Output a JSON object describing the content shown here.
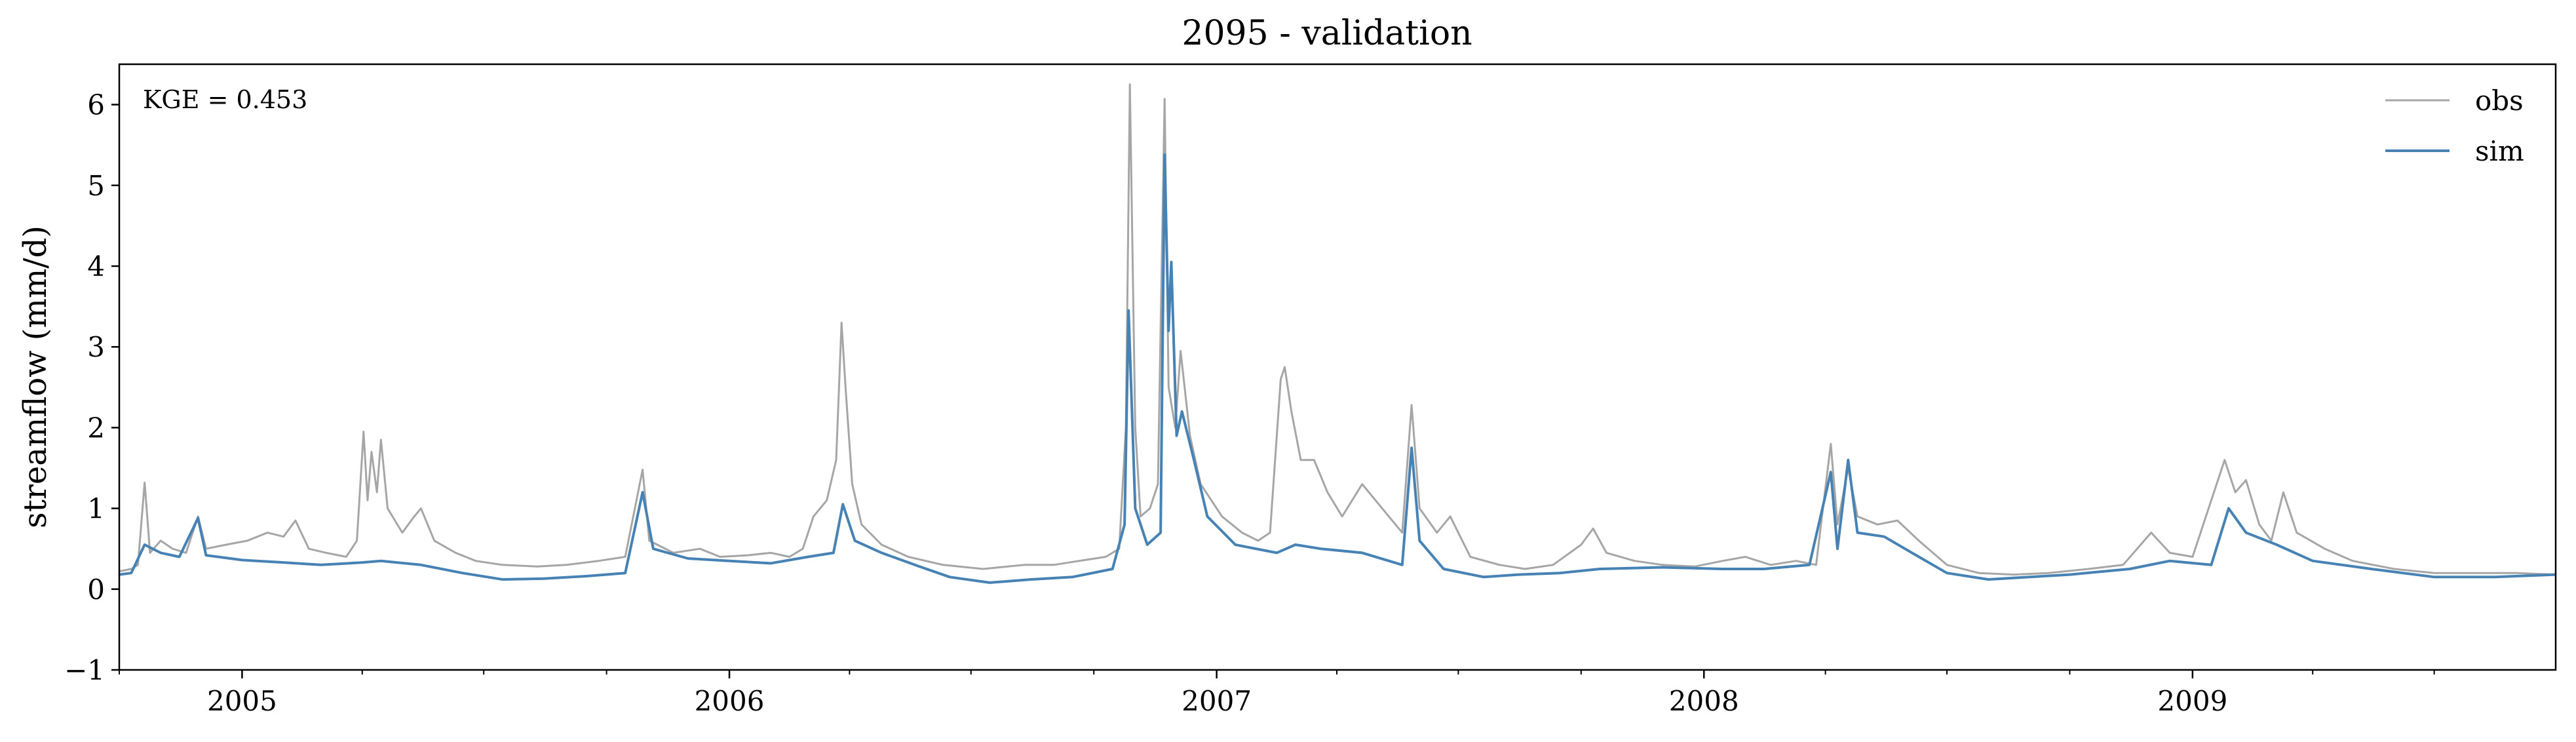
{
  "chart_data": {
    "type": "line",
    "title": "2095 - validation",
    "xlabel": "",
    "ylabel": "streamflow (mm/d)",
    "annotation": "KGE = 0.453",
    "x_range": [
      "2004-10-01",
      "2009-09-30"
    ],
    "ylim": [
      -1,
      6.5
    ],
    "y_ticks": [
      -1,
      0,
      1,
      2,
      3,
      4,
      5,
      6
    ],
    "y_tick_labels": [
      "−1",
      "0",
      "1",
      "2",
      "3",
      "4",
      "5",
      "6"
    ],
    "x_tick_labels": [
      "2005",
      "2006",
      "2007",
      "2008",
      "2009"
    ],
    "x_ticks": [
      "2005-01-01",
      "2006-01-01",
      "2007-01-01",
      "2008-01-01",
      "2009-01-01"
    ],
    "legend_position": "top-right",
    "grid": false,
    "series": [
      {
        "name": "obs",
        "color": "#a6a6a6",
        "points": [
          [
            "2004-10-01",
            0.22
          ],
          [
            "2004-10-10",
            0.25
          ],
          [
            "2004-10-15",
            0.3
          ],
          [
            "2004-10-20",
            1.32
          ],
          [
            "2004-10-24",
            0.45
          ],
          [
            "2004-11-01",
            0.6
          ],
          [
            "2004-11-10",
            0.5
          ],
          [
            "2004-11-20",
            0.45
          ],
          [
            "2004-11-29",
            0.9
          ],
          [
            "2004-12-05",
            0.5
          ],
          [
            "2004-12-20",
            0.55
          ],
          [
            "2005-01-05",
            0.6
          ],
          [
            "2005-01-20",
            0.7
          ],
          [
            "2005-02-01",
            0.65
          ],
          [
            "2005-02-10",
            0.85
          ],
          [
            "2005-02-20",
            0.5
          ],
          [
            "2005-03-05",
            0.45
          ],
          [
            "2005-03-20",
            0.4
          ],
          [
            "2005-03-28",
            0.6
          ],
          [
            "2005-04-02",
            1.95
          ],
          [
            "2005-04-05",
            1.1
          ],
          [
            "2005-04-08",
            1.7
          ],
          [
            "2005-04-12",
            1.2
          ],
          [
            "2005-04-15",
            1.85
          ],
          [
            "2005-04-20",
            1.0
          ],
          [
            "2005-05-01",
            0.7
          ],
          [
            "2005-05-10",
            0.9
          ],
          [
            "2005-05-15",
            1.0
          ],
          [
            "2005-05-25",
            0.6
          ],
          [
            "2005-06-10",
            0.45
          ],
          [
            "2005-06-25",
            0.35
          ],
          [
            "2005-07-15",
            0.3
          ],
          [
            "2005-08-10",
            0.28
          ],
          [
            "2005-09-01",
            0.3
          ],
          [
            "2005-09-25",
            0.35
          ],
          [
            "2005-10-15",
            0.4
          ],
          [
            "2005-10-28",
            1.48
          ],
          [
            "2005-11-02",
            0.6
          ],
          [
            "2005-11-20",
            0.45
          ],
          [
            "2005-12-10",
            0.5
          ],
          [
            "2005-12-25",
            0.4
          ],
          [
            "2006-01-15",
            0.42
          ],
          [
            "2006-02-01",
            0.45
          ],
          [
            "2006-02-15",
            0.4
          ],
          [
            "2006-02-25",
            0.5
          ],
          [
            "2006-03-05",
            0.9
          ],
          [
            "2006-03-15",
            1.1
          ],
          [
            "2006-03-22",
            1.6
          ],
          [
            "2006-03-26",
            3.3
          ],
          [
            "2006-03-29",
            2.5
          ],
          [
            "2006-04-03",
            1.3
          ],
          [
            "2006-04-10",
            0.8
          ],
          [
            "2006-04-25",
            0.55
          ],
          [
            "2006-05-15",
            0.4
          ],
          [
            "2006-06-10",
            0.3
          ],
          [
            "2006-07-10",
            0.25
          ],
          [
            "2006-08-10",
            0.3
          ],
          [
            "2006-09-01",
            0.3
          ],
          [
            "2006-09-20",
            0.35
          ],
          [
            "2006-10-10",
            0.4
          ],
          [
            "2006-10-20",
            0.5
          ],
          [
            "2006-10-25",
            2.0
          ],
          [
            "2006-10-28",
            6.25
          ],
          [
            "2006-11-01",
            2.0
          ],
          [
            "2006-11-05",
            0.9
          ],
          [
            "2006-11-12",
            1.0
          ],
          [
            "2006-11-18",
            1.3
          ],
          [
            "2006-11-23",
            6.07
          ],
          [
            "2006-11-26",
            2.5
          ],
          [
            "2006-12-01",
            2.0
          ],
          [
            "2006-12-05",
            2.95
          ],
          [
            "2006-12-12",
            1.9
          ],
          [
            "2006-12-20",
            1.3
          ],
          [
            "2007-01-05",
            0.9
          ],
          [
            "2007-01-20",
            0.7
          ],
          [
            "2007-02-01",
            0.6
          ],
          [
            "2007-02-10",
            0.7
          ],
          [
            "2007-02-18",
            2.6
          ],
          [
            "2007-02-21",
            2.75
          ],
          [
            "2007-02-26",
            2.2
          ],
          [
            "2007-03-05",
            1.6
          ],
          [
            "2007-03-15",
            1.6
          ],
          [
            "2007-03-25",
            1.2
          ],
          [
            "2007-04-05",
            0.9
          ],
          [
            "2007-04-20",
            1.3
          ],
          [
            "2007-05-05",
            1.0
          ],
          [
            "2007-05-20",
            0.7
          ],
          [
            "2007-05-27",
            2.28
          ],
          [
            "2007-06-02",
            1.0
          ],
          [
            "2007-06-15",
            0.7
          ],
          [
            "2007-06-25",
            0.9
          ],
          [
            "2007-07-10",
            0.4
          ],
          [
            "2007-08-01",
            0.3
          ],
          [
            "2007-08-20",
            0.25
          ],
          [
            "2007-09-10",
            0.3
          ],
          [
            "2007-10-01",
            0.55
          ],
          [
            "2007-10-10",
            0.75
          ],
          [
            "2007-10-20",
            0.45
          ],
          [
            "2007-11-10",
            0.35
          ],
          [
            "2007-12-01",
            0.3
          ],
          [
            "2007-12-25",
            0.28
          ],
          [
            "2008-01-15",
            0.35
          ],
          [
            "2008-02-01",
            0.4
          ],
          [
            "2008-02-20",
            0.3
          ],
          [
            "2008-03-10",
            0.35
          ],
          [
            "2008-03-25",
            0.3
          ],
          [
            "2008-04-05",
            1.8
          ],
          [
            "2008-04-10",
            0.8
          ],
          [
            "2008-04-18",
            1.5
          ],
          [
            "2008-04-25",
            0.9
          ],
          [
            "2008-05-10",
            0.8
          ],
          [
            "2008-05-25",
            0.85
          ],
          [
            "2008-06-10",
            0.6
          ],
          [
            "2008-07-01",
            0.3
          ],
          [
            "2008-07-25",
            0.2
          ],
          [
            "2008-08-20",
            0.18
          ],
          [
            "2008-09-15",
            0.2
          ],
          [
            "2008-10-15",
            0.25
          ],
          [
            "2008-11-10",
            0.3
          ],
          [
            "2008-12-01",
            0.7
          ],
          [
            "2008-12-15",
            0.45
          ],
          [
            "2009-01-01",
            0.4
          ],
          [
            "2009-01-15",
            1.1
          ],
          [
            "2009-01-25",
            1.6
          ],
          [
            "2009-02-02",
            1.2
          ],
          [
            "2009-02-10",
            1.35
          ],
          [
            "2009-02-20",
            0.8
          ],
          [
            "2009-03-01",
            0.6
          ],
          [
            "2009-03-10",
            1.2
          ],
          [
            "2009-03-20",
            0.7
          ],
          [
            "2009-04-10",
            0.5
          ],
          [
            "2009-05-01",
            0.35
          ],
          [
            "2009-06-01",
            0.25
          ],
          [
            "2009-07-01",
            0.2
          ],
          [
            "2009-08-01",
            0.2
          ],
          [
            "2009-09-01",
            0.2
          ],
          [
            "2009-09-30",
            0.18
          ]
        ]
      },
      {
        "name": "sim",
        "color": "#4682b4",
        "points": [
          [
            "2004-10-01",
            0.18
          ],
          [
            "2004-10-10",
            0.2
          ],
          [
            "2004-10-20",
            0.55
          ],
          [
            "2004-11-01",
            0.45
          ],
          [
            "2004-11-15",
            0.4
          ],
          [
            "2004-11-29",
            0.88
          ],
          [
            "2004-12-05",
            0.42
          ],
          [
            "2005-01-01",
            0.36
          ],
          [
            "2005-02-01",
            0.33
          ],
          [
            "2005-03-01",
            0.3
          ],
          [
            "2005-04-01",
            0.33
          ],
          [
            "2005-04-15",
            0.35
          ],
          [
            "2005-05-15",
            0.3
          ],
          [
            "2005-06-15",
            0.2
          ],
          [
            "2005-07-15",
            0.12
          ],
          [
            "2005-08-15",
            0.13
          ],
          [
            "2005-09-15",
            0.16
          ],
          [
            "2005-10-15",
            0.2
          ],
          [
            "2005-10-28",
            1.2
          ],
          [
            "2005-11-05",
            0.5
          ],
          [
            "2005-12-01",
            0.38
          ],
          [
            "2006-01-01",
            0.35
          ],
          [
            "2006-02-01",
            0.32
          ],
          [
            "2006-03-01",
            0.4
          ],
          [
            "2006-03-20",
            0.45
          ],
          [
            "2006-03-27",
            1.05
          ],
          [
            "2006-04-05",
            0.6
          ],
          [
            "2006-04-25",
            0.45
          ],
          [
            "2006-05-20",
            0.3
          ],
          [
            "2006-06-15",
            0.15
          ],
          [
            "2006-07-15",
            0.08
          ],
          [
            "2006-08-15",
            0.12
          ],
          [
            "2006-09-15",
            0.15
          ],
          [
            "2006-10-15",
            0.25
          ],
          [
            "2006-10-24",
            0.8
          ],
          [
            "2006-10-27",
            3.45
          ],
          [
            "2006-11-01",
            1.0
          ],
          [
            "2006-11-10",
            0.55
          ],
          [
            "2006-11-20",
            0.7
          ],
          [
            "2006-11-23",
            5.38
          ],
          [
            "2006-11-26",
            3.2
          ],
          [
            "2006-11-28",
            4.05
          ],
          [
            "2006-12-02",
            1.9
          ],
          [
            "2006-12-06",
            2.2
          ],
          [
            "2006-12-15",
            1.6
          ],
          [
            "2006-12-25",
            0.9
          ],
          [
            "2007-01-15",
            0.55
          ],
          [
            "2007-02-15",
            0.45
          ],
          [
            "2007-03-01",
            0.55
          ],
          [
            "2007-03-20",
            0.5
          ],
          [
            "2007-04-20",
            0.45
          ],
          [
            "2007-05-20",
            0.3
          ],
          [
            "2007-05-27",
            1.75
          ],
          [
            "2007-06-02",
            0.6
          ],
          [
            "2007-06-20",
            0.25
          ],
          [
            "2007-07-20",
            0.15
          ],
          [
            "2007-08-15",
            0.18
          ],
          [
            "2007-09-15",
            0.2
          ],
          [
            "2007-10-15",
            0.25
          ],
          [
            "2007-12-01",
            0.27
          ],
          [
            "2008-01-15",
            0.25
          ],
          [
            "2008-02-15",
            0.25
          ],
          [
            "2008-03-20",
            0.3
          ],
          [
            "2008-04-05",
            1.45
          ],
          [
            "2008-04-10",
            0.5
          ],
          [
            "2008-04-18",
            1.6
          ],
          [
            "2008-04-25",
            0.7
          ],
          [
            "2008-05-15",
            0.65
          ],
          [
            "2008-06-10",
            0.4
          ],
          [
            "2008-07-01",
            0.2
          ],
          [
            "2008-08-01",
            0.12
          ],
          [
            "2008-09-01",
            0.15
          ],
          [
            "2008-10-01",
            0.18
          ],
          [
            "2008-11-15",
            0.25
          ],
          [
            "2008-12-15",
            0.35
          ],
          [
            "2009-01-15",
            0.3
          ],
          [
            "2009-01-28",
            1.0
          ],
          [
            "2009-02-10",
            0.7
          ],
          [
            "2009-03-05",
            0.55
          ],
          [
            "2009-04-01",
            0.35
          ],
          [
            "2009-05-15",
            0.25
          ],
          [
            "2009-07-01",
            0.15
          ],
          [
            "2009-08-15",
            0.15
          ],
          [
            "2009-09-30",
            0.18
          ]
        ]
      }
    ]
  }
}
